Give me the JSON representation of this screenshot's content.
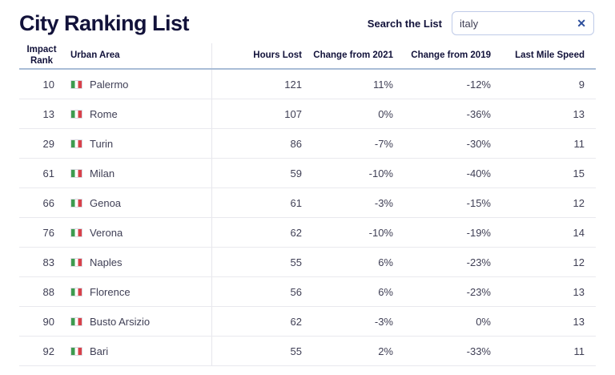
{
  "page": {
    "title": "City Ranking List"
  },
  "search": {
    "label": "Search the List",
    "value": "italy",
    "placeholder": "",
    "clear_glyph": "✕"
  },
  "colors": {
    "heading_navy": "#12123a",
    "body_text": "#3f3f55",
    "header_underline": "#a9bdd6",
    "row_divider": "#e9e9ee",
    "search_border": "#bfcbe8",
    "clear_icon": "#2b4d9b",
    "flag_green": "#3d9b4e",
    "flag_red": "#d8414a"
  },
  "table": {
    "columns": [
      {
        "key": "rank",
        "label": "Impact Rank"
      },
      {
        "key": "city",
        "label": "Urban Area"
      },
      {
        "key": "hours",
        "label": "Hours Lost"
      },
      {
        "key": "c2021",
        "label": "Change from 2021"
      },
      {
        "key": "c2019",
        "label": "Change from 2019"
      },
      {
        "key": "lastmile",
        "label": "Last Mile Speed"
      }
    ],
    "rows": [
      {
        "rank": "10",
        "city": "Palermo",
        "flag": "italy",
        "hours": "121",
        "c2021": "11%",
        "c2019": "-12%",
        "lastmile": "9"
      },
      {
        "rank": "13",
        "city": "Rome",
        "flag": "italy",
        "hours": "107",
        "c2021": "0%",
        "c2019": "-36%",
        "lastmile": "13"
      },
      {
        "rank": "29",
        "city": "Turin",
        "flag": "italy",
        "hours": "86",
        "c2021": "-7%",
        "c2019": "-30%",
        "lastmile": "11"
      },
      {
        "rank": "61",
        "city": "Milan",
        "flag": "italy",
        "hours": "59",
        "c2021": "-10%",
        "c2019": "-40%",
        "lastmile": "15"
      },
      {
        "rank": "66",
        "city": "Genoa",
        "flag": "italy",
        "hours": "61",
        "c2021": "-3%",
        "c2019": "-15%",
        "lastmile": "12"
      },
      {
        "rank": "76",
        "city": "Verona",
        "flag": "italy",
        "hours": "62",
        "c2021": "-10%",
        "c2019": "-19%",
        "lastmile": "14"
      },
      {
        "rank": "83",
        "city": "Naples",
        "flag": "italy",
        "hours": "55",
        "c2021": "6%",
        "c2019": "-23%",
        "lastmile": "12"
      },
      {
        "rank": "88",
        "city": "Florence",
        "flag": "italy",
        "hours": "56",
        "c2021": "6%",
        "c2019": "-23%",
        "lastmile": "13"
      },
      {
        "rank": "90",
        "city": "Busto Arsizio",
        "flag": "italy",
        "hours": "62",
        "c2021": "-3%",
        "c2019": "0%",
        "lastmile": "13"
      },
      {
        "rank": "92",
        "city": "Bari",
        "flag": "italy",
        "hours": "55",
        "c2021": "2%",
        "c2019": "-33%",
        "lastmile": "11"
      }
    ]
  }
}
